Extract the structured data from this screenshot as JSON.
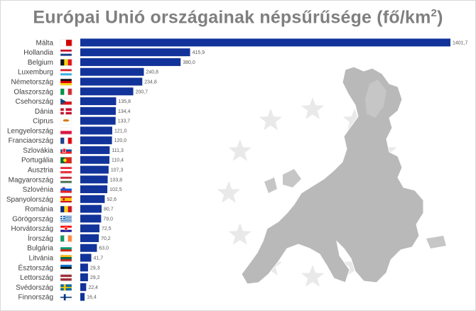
{
  "chart_data": {
    "type": "bar",
    "orientation": "horizontal",
    "title": "Európai Unió országainak népsűrűsége (fő/km²)",
    "title_main": "Európai Unió országainak népsűrűsége (fő/km",
    "title_sup": "2",
    "title_end": ")",
    "categories": [
      "Málta",
      "Hollandia",
      "Belgium",
      "Luxemburg",
      "Németország",
      "Olaszország",
      "Csehország",
      "Dánia",
      "Ciprus",
      "Lengyelország",
      "Franciaország",
      "Szlovákia",
      "Portugália",
      "Ausztria",
      "Magyarország",
      "Szlovénia",
      "Spanyolország",
      "Románia",
      "Görögország",
      "Horvátország",
      "Írország",
      "Bulgária",
      "Litvánia",
      "Észtország",
      "Lettország",
      "Svédország",
      "Finnország"
    ],
    "values": [
      1401.7,
      415.9,
      380.0,
      240.8,
      234.8,
      200.7,
      135.8,
      134.4,
      133.7,
      121.0,
      120.0,
      111.3,
      110.4,
      107.3,
      103.8,
      102.5,
      92.6,
      80.7,
      79.0,
      72.5,
      70.2,
      63.0,
      41.7,
      29.3,
      29.2,
      22.4,
      16.4
    ],
    "value_labels": [
      "1401,7",
      "415,9",
      "380,0",
      "240,8",
      "234,8",
      "200,7",
      "135,8",
      "134,4",
      "133,7",
      "121,0",
      "120,0",
      "111,3",
      "110,4",
      "107,3",
      "103,8",
      "102,5",
      "92,6",
      "80,7",
      "79,0",
      "72,5",
      "70,2",
      "63,0",
      "41,7",
      "29,3",
      "29,2",
      "22,4",
      "16,4"
    ],
    "xlim": [
      0,
      1401.7
    ],
    "bar_color": "#12339a",
    "grid": false,
    "background_image": "eu-map-with-stars",
    "flag_icons": [
      "malta-flag-icon",
      "netherlands-flag-icon",
      "belgium-flag-icon",
      "luxembourg-flag-icon",
      "germany-flag-icon",
      "italy-flag-icon",
      "czechia-flag-icon",
      "denmark-flag-icon",
      "cyprus-flag-icon",
      "poland-flag-icon",
      "france-flag-icon",
      "slovakia-flag-icon",
      "portugal-flag-icon",
      "austria-flag-icon",
      "hungary-flag-icon",
      "slovenia-flag-icon",
      "spain-flag-icon",
      "romania-flag-icon",
      "greece-flag-icon",
      "croatia-flag-icon",
      "ireland-flag-icon",
      "bulgaria-flag-icon",
      "lithuania-flag-icon",
      "estonia-flag-icon",
      "latvia-flag-icon",
      "sweden-flag-icon",
      "finland-flag-icon"
    ]
  }
}
